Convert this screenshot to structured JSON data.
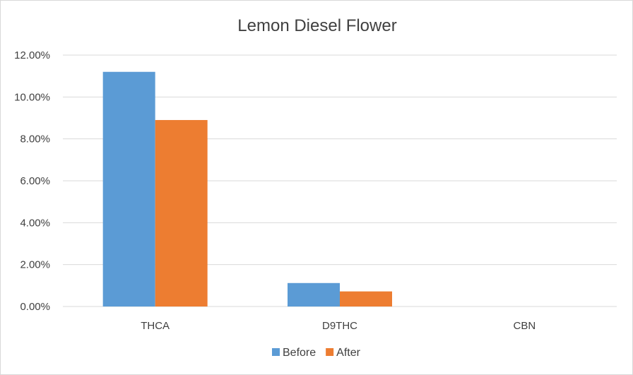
{
  "chart_data": {
    "type": "bar",
    "title": "Lemon Diesel Flower",
    "categories": [
      "THCA",
      "D9THC",
      "CBN"
    ],
    "series": [
      {
        "name": "Before",
        "values": [
          11.2,
          1.12,
          0.0
        ],
        "color": "#5b9bd5"
      },
      {
        "name": "After",
        "values": [
          8.9,
          0.72,
          0.0
        ],
        "color": "#ed7d31"
      }
    ],
    "y_ticks": [
      "0.00%",
      "2.00%",
      "4.00%",
      "6.00%",
      "8.00%",
      "10.00%",
      "12.00%"
    ],
    "ylim": [
      0,
      12
    ],
    "y_unit": "%",
    "grid": true,
    "gridline_color": "#d9d9d9",
    "legend_position": "bottom"
  }
}
